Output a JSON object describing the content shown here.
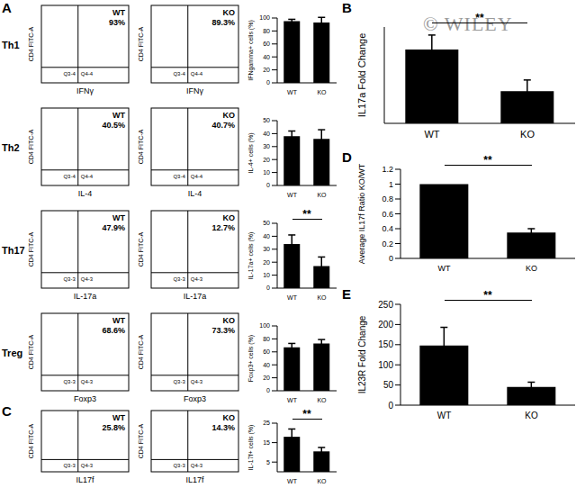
{
  "panel_letters": [
    "A",
    "B",
    "C",
    "D",
    "E"
  ],
  "watermark": "© WILEY",
  "flow_panels": [
    {
      "row": "Th1",
      "y_label": "CD4 FITC-A",
      "x_label": "IFNγ",
      "plots": [
        {
          "gate": "WT",
          "percent": "93%",
          "quadrants": [
            "Q3-4",
            "Q4-4"
          ]
        },
        {
          "gate": "KO",
          "percent": "89.3%",
          "quadrants": [
            "Q3-4",
            "Q4-4"
          ]
        }
      ]
    },
    {
      "row": "Th2",
      "y_label": "CD4 FITC-A",
      "x_label": "IL-4",
      "plots": [
        {
          "gate": "WT",
          "percent": "40.5%",
          "quadrants": [
            "Q3-4",
            "Q4-4"
          ]
        },
        {
          "gate": "KO",
          "percent": "40.7%",
          "quadrants": [
            "Q3-4",
            "Q4-4"
          ]
        }
      ]
    },
    {
      "row": "Th17",
      "y_label": "CD4 FITC-A",
      "x_label": "IL-17a",
      "plots": [
        {
          "gate": "WT",
          "percent": "47.9%",
          "quadrants": [
            "Q3-3",
            "Q4-3"
          ]
        },
        {
          "gate": "KO",
          "percent": "12.7%",
          "quadrants": [
            "Q3-3",
            "Q4-3"
          ]
        }
      ]
    },
    {
      "row": "Treg",
      "y_label": "CD4 FITC-A",
      "x_label": "Foxp3",
      "plots": [
        {
          "gate": "WT",
          "percent": "68.6%",
          "quadrants": [
            "Q3-3",
            "Q4-3"
          ]
        },
        {
          "gate": "KO",
          "percent": "73.3%",
          "quadrants": [
            "Q3-3",
            "Q4-3"
          ]
        }
      ]
    },
    {
      "row": null,
      "y_label": "CD4 FITC-A",
      "x_label": "IL17f",
      "plots": [
        {
          "gate": "WT",
          "percent": "25.8%",
          "quadrants": [
            "Q3-3",
            "Q4-3"
          ]
        },
        {
          "gate": "KO",
          "percent": "14.3%",
          "quadrants": [
            "Q3-3",
            "Q4-3"
          ]
        }
      ]
    }
  ],
  "chart_data": [
    {
      "type": "bar",
      "ylabel": "IFNgamma+ cells (%)",
      "categories": [
        "WT",
        "KO"
      ],
      "values": [
        95,
        93
      ],
      "errors": [
        3,
        8
      ],
      "color": "#000000",
      "ylim": [
        0,
        100
      ],
      "yticks": [
        0,
        20,
        40,
        60,
        80,
        100
      ],
      "grid": false
    },
    {
      "type": "bar",
      "ylabel": "IL-4+ cells (%)",
      "categories": [
        "WT",
        "KO"
      ],
      "values": [
        38,
        36
      ],
      "errors": [
        4,
        7
      ],
      "color": "#000000",
      "ylim": [
        0,
        50
      ],
      "yticks": [
        0,
        10,
        20,
        30,
        40,
        50
      ],
      "grid": false
    },
    {
      "type": "bar",
      "ylabel": "IL-17a+ cells (%)",
      "categories": [
        "WT",
        "KO"
      ],
      "values": [
        34,
        17
      ],
      "errors": [
        7,
        7
      ],
      "significance": "**",
      "color": "#000000",
      "ylim": [
        0,
        50
      ],
      "yticks": [
        0,
        10,
        20,
        30,
        40,
        50
      ],
      "grid": false
    },
    {
      "type": "bar",
      "ylabel": "Foxp3+ cells (%)",
      "categories": [
        "WT",
        "KO"
      ],
      "values": [
        67,
        73
      ],
      "errors": [
        6,
        6
      ],
      "color": "#000000",
      "ylim": [
        0,
        100
      ],
      "yticks": [
        0,
        20,
        40,
        60,
        80,
        100
      ],
      "grid": false
    },
    {
      "type": "bar",
      "ylabel": "IL-17f+ cells (%)",
      "categories": [
        "WT",
        "KO"
      ],
      "values": [
        18,
        10.5
      ],
      "errors": [
        4,
        2
      ],
      "significance": "**",
      "color": "#000000",
      "ylim": [
        0,
        25
      ],
      "yticks": [
        0,
        5,
        10,
        15,
        20,
        25
      ],
      "grid": false
    },
    {
      "type": "bar",
      "ylabel": "IL17a Fold Change",
      "categories": [
        "WT",
        "KO"
      ],
      "values": [
        460,
        200
      ],
      "errors": [
        90,
        70
      ],
      "significance": "**",
      "color": "#000000",
      "ylim": [
        0,
        600
      ],
      "tick_labels": "x",
      "grid": false
    },
    {
      "type": "bar",
      "ylabel": "Average IL17f Ratio KO/WT",
      "categories": [
        "WT",
        "KO"
      ],
      "values": [
        1,
        0.35
      ],
      "errors": [
        0,
        0.05
      ],
      "significance": "**",
      "color": "#000000",
      "ylim": [
        0,
        1.2
      ],
      "yticks": [
        0,
        0.2,
        0.4,
        0.6,
        0.8,
        1,
        1.2
      ],
      "grid": false
    },
    {
      "type": "bar",
      "ylabel": "IL23R Fold Change",
      "categories": [
        "WT",
        "KO"
      ],
      "values": [
        148,
        45
      ],
      "errors": [
        45,
        12
      ],
      "significance": "**",
      "color": "#000000",
      "ylim": [
        0,
        250
      ],
      "yticks": [
        0,
        50,
        100,
        150,
        200,
        250
      ],
      "grid": false
    }
  ]
}
